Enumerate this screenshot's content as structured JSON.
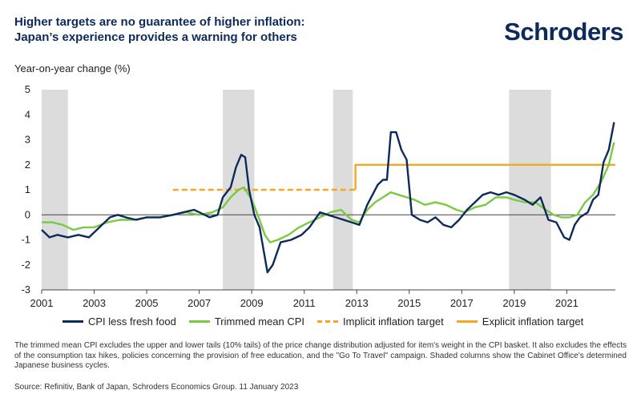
{
  "header": {
    "title_line1": "Higher targets are no guarantee of higher inflation:",
    "title_line2": "Japan’s experience provides a warning for others",
    "logo": "Schroders"
  },
  "footer": {
    "note": "The trimmed mean CPI excludes the upper and lower tails (10% tails) of the price change distribution adjusted for item's weight in the CPI basket. It also excludes the effects of the consumption tax hikes, policies concerning the provision of free education, and the \"Go To Travel\" campaign. Shaded columns show the Cabinet Office's determined Japanese business cycles.",
    "source": "Source:  Refinitiv,  Bank of Japan, Schroders Economics Group.  11 January 2023"
  },
  "chart_data": {
    "type": "line",
    "ylabel": "Year-on-year change (%)",
    "xlim": [
      2001,
      2022.85
    ],
    "ylim": [
      -3,
      5
    ],
    "x_ticks": [
      "2001",
      "2003",
      "2005",
      "2007",
      "2009",
      "2011",
      "2013",
      "2015",
      "2017",
      "2019",
      "2021"
    ],
    "y_ticks": [
      "-3",
      "-2",
      "-1",
      "0",
      "1",
      "2",
      "3",
      "4",
      "5"
    ],
    "grid": false,
    "legend_position": "bottom",
    "shaded_periods": [
      [
        2001.0,
        2002.0
      ],
      [
        2007.9,
        2009.1
      ],
      [
        2012.1,
        2012.85
      ],
      [
        2018.8,
        2020.4
      ]
    ],
    "series": [
      {
        "name": "CPI less fresh food",
        "color": "#0d2a5c",
        "style": "solid",
        "x": [
          2001.0,
          2001.3,
          2001.6,
          2002.0,
          2002.4,
          2002.8,
          2003.2,
          2003.6,
          2003.9,
          2004.2,
          2004.6,
          2005.0,
          2005.5,
          2006.0,
          2006.4,
          2006.8,
          2007.0,
          2007.4,
          2007.7,
          2007.9,
          2008.2,
          2008.4,
          2008.6,
          2008.75,
          2008.9,
          2009.1,
          2009.3,
          2009.45,
          2009.6,
          2009.8,
          2010.1,
          2010.5,
          2010.9,
          2011.2,
          2011.6,
          2011.9,
          2012.2,
          2012.5,
          2012.8,
          2013.1,
          2013.4,
          2013.6,
          2013.8,
          2014.0,
          2014.15,
          2014.3,
          2014.5,
          2014.7,
          2014.9,
          2015.1,
          2015.25,
          2015.4,
          2015.7,
          2016.0,
          2016.3,
          2016.6,
          2016.9,
          2017.2,
          2017.5,
          2017.8,
          2018.1,
          2018.4,
          2018.7,
          2019.0,
          2019.4,
          2019.7,
          2020.0,
          2020.3,
          2020.6,
          2020.9,
          2021.1,
          2021.3,
          2021.5,
          2021.8,
          2022.0,
          2022.2,
          2022.4,
          2022.6,
          2022.8
        ],
        "y": [
          -0.6,
          -0.9,
          -0.8,
          -0.9,
          -0.8,
          -0.9,
          -0.5,
          -0.1,
          0.0,
          -0.1,
          -0.2,
          -0.1,
          -0.1,
          0.0,
          0.1,
          0.2,
          0.1,
          -0.1,
          0.0,
          0.7,
          1.1,
          1.9,
          2.4,
          2.3,
          1.0,
          0.0,
          -0.5,
          -1.4,
          -2.3,
          -2.0,
          -1.1,
          -1.0,
          -0.8,
          -0.5,
          0.1,
          0.0,
          -0.1,
          -0.2,
          -0.3,
          -0.4,
          0.4,
          0.8,
          1.2,
          1.4,
          1.4,
          3.3,
          3.3,
          2.6,
          2.2,
          0.0,
          -0.1,
          -0.2,
          -0.3,
          -0.1,
          -0.4,
          -0.5,
          -0.2,
          0.2,
          0.5,
          0.8,
          0.9,
          0.8,
          0.9,
          0.8,
          0.6,
          0.4,
          0.7,
          -0.2,
          -0.3,
          -0.9,
          -1.0,
          -0.4,
          -0.1,
          0.1,
          0.6,
          0.8,
          2.1,
          2.6,
          3.7
        ]
      },
      {
        "name": "Trimmed mean CPI",
        "color": "#7ac943",
        "style": "solid",
        "x": [
          2001.0,
          2001.4,
          2001.8,
          2002.2,
          2002.6,
          2003.0,
          2003.5,
          2004.0,
          2004.5,
          2005.0,
          2005.5,
          2006.0,
          2006.5,
          2007.0,
          2007.5,
          2007.9,
          2008.2,
          2008.5,
          2008.7,
          2009.0,
          2009.3,
          2009.5,
          2009.7,
          2010.0,
          2010.4,
          2010.8,
          2011.2,
          2011.6,
          2012.0,
          2012.4,
          2012.8,
          2013.1,
          2013.4,
          2013.7,
          2014.0,
          2014.3,
          2014.6,
          2014.9,
          2015.2,
          2015.6,
          2016.0,
          2016.4,
          2016.8,
          2017.1,
          2017.5,
          2017.9,
          2018.3,
          2018.7,
          2019.0,
          2019.4,
          2019.8,
          2020.2,
          2020.5,
          2020.8,
          2021.1,
          2021.4,
          2021.7,
          2022.0,
          2022.3,
          2022.6,
          2022.8
        ],
        "y": [
          -0.3,
          -0.3,
          -0.4,
          -0.6,
          -0.5,
          -0.5,
          -0.3,
          -0.2,
          -0.2,
          -0.1,
          -0.1,
          0.0,
          0.1,
          0.0,
          0.1,
          0.3,
          0.7,
          1.0,
          1.1,
          0.6,
          -0.2,
          -0.8,
          -1.1,
          -1.0,
          -0.8,
          -0.5,
          -0.3,
          -0.1,
          0.1,
          0.2,
          -0.2,
          -0.3,
          0.2,
          0.5,
          0.7,
          0.9,
          0.8,
          0.7,
          0.6,
          0.4,
          0.5,
          0.4,
          0.2,
          0.1,
          0.3,
          0.4,
          0.7,
          0.7,
          0.6,
          0.5,
          0.5,
          0.2,
          0.0,
          -0.1,
          -0.1,
          0.0,
          0.5,
          0.8,
          1.3,
          2.0,
          2.9
        ]
      },
      {
        "name": "Implicit inflation target",
        "color": "#f5a623",
        "style": "dashed",
        "x": [
          2006.0,
          2012.95
        ],
        "y": [
          1.0,
          1.0
        ]
      },
      {
        "name": "Explicit inflation target",
        "color": "#f5a623",
        "style": "solid",
        "x": [
          2012.95,
          2012.95,
          2022.85
        ],
        "y": [
          1.0,
          2.0,
          2.0
        ]
      }
    ]
  }
}
